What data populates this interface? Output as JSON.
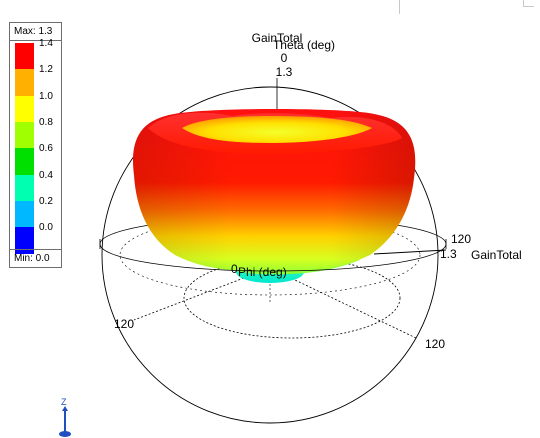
{
  "plot": {
    "quantity_label": "GainTotal",
    "theta_label": "Theta (deg)",
    "theta_zero": "0",
    "theta_scale_value": "1.3",
    "phi_label": "Phi (deg)",
    "phi_zero": "0",
    "right_angle_label": "120",
    "right_scale_value": "1.3",
    "right_quantity_label": "GainTotal",
    "left_angle_label": "120",
    "bottom_angle_label": "120"
  },
  "legend": {
    "max_label": "Max: 1.3",
    "min_label": "Min: 0.0",
    "ticks": [
      "1.4",
      "1.2",
      "1.0",
      "0.8",
      "0.6",
      "0.4",
      "0.2",
      "0.0"
    ],
    "colors": [
      "#ff0000",
      "#ffb000",
      "#ffff00",
      "#a0ff00",
      "#00e000",
      "#00ffb0",
      "#00b8ff",
      "#0000ff"
    ]
  },
  "triad": {
    "z_label": "Z"
  }
}
